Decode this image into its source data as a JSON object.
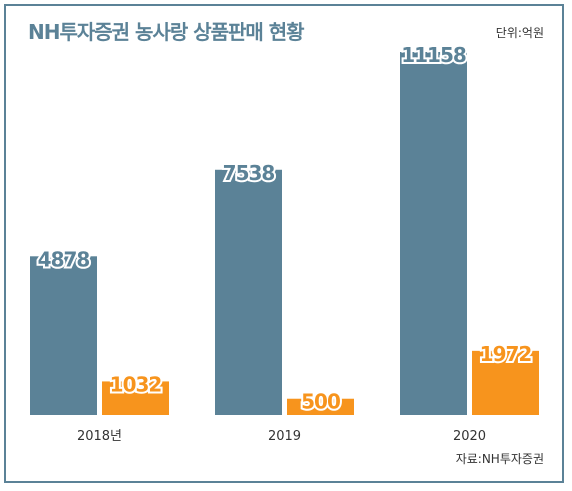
{
  "header": {
    "title": "NH투자증권 농사랑 상품판매 현황",
    "unit": "단위:억원"
  },
  "footer": {
    "source": "자료:NH투자증권"
  },
  "colors": {
    "series_a": "#5b8297",
    "series_b": "#f7941d",
    "frame": "#5b8297"
  },
  "chart_data": {
    "type": "bar",
    "title": "NH투자증권 농사랑 상품판매 현황",
    "xlabel": "",
    "ylabel": "",
    "categories": [
      "2018년",
      "2019",
      "2020"
    ],
    "series": [
      {
        "values": [
          4878,
          7538,
          11158
        ]
      },
      {
        "values": [
          1032,
          500,
          1972
        ]
      }
    ],
    "ylim": [
      0,
      11158
    ],
    "grid": false
  }
}
